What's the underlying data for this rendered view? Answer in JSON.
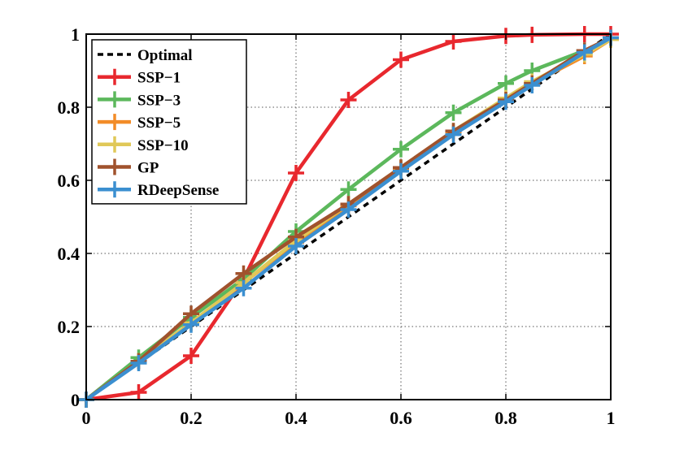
{
  "chart_data": {
    "type": "line",
    "title": "",
    "xlabel": "",
    "ylabel": "",
    "xlim": [
      0,
      1
    ],
    "ylim": [
      0,
      1
    ],
    "grid": true,
    "legend_position": "top-left",
    "x_ticks": [
      "0",
      "0.2",
      "0.4",
      "0.6",
      "0.8",
      "1"
    ],
    "y_ticks": [
      "0",
      "0.2",
      "0.4",
      "0.6",
      "0.8",
      "1"
    ],
    "x": [
      0,
      0.1,
      0.2,
      0.3,
      0.4,
      0.5,
      0.6,
      0.7,
      0.8,
      0.85,
      0.95,
      1.0
    ],
    "series": [
      {
        "name": "Optimal",
        "color": "#000000",
        "style": "dashed",
        "marker": "none",
        "values": [
          0,
          0.1,
          0.2,
          0.3,
          0.4,
          0.5,
          0.6,
          0.7,
          0.8,
          0.85,
          0.95,
          1.0
        ]
      },
      {
        "name": "SSP−1",
        "color": "#e8282e",
        "style": "solid",
        "marker": "plus",
        "values": [
          0,
          0.02,
          0.12,
          0.33,
          0.62,
          0.82,
          0.93,
          0.98,
          0.995,
          0.998,
          1.0,
          1.0
        ]
      },
      {
        "name": "SSP−3",
        "color": "#5cb85c",
        "style": "solid",
        "marker": "plus",
        "values": [
          0,
          0.115,
          0.225,
          0.33,
          0.46,
          0.575,
          0.685,
          0.785,
          0.865,
          0.9,
          0.955,
          0.985
        ]
      },
      {
        "name": "SSP−5",
        "color": "#f28c28",
        "style": "solid",
        "marker": "plus",
        "values": [
          0,
          0.105,
          0.21,
          0.32,
          0.43,
          0.53,
          0.63,
          0.73,
          0.82,
          0.865,
          0.94,
          0.985
        ]
      },
      {
        "name": "SSP−10",
        "color": "#e0c858",
        "style": "solid",
        "marker": "plus",
        "values": [
          0,
          0.105,
          0.21,
          0.32,
          0.435,
          0.535,
          0.635,
          0.735,
          0.825,
          0.87,
          0.945,
          0.985
        ]
      },
      {
        "name": "GP",
        "color": "#a0522d",
        "style": "solid",
        "marker": "plus",
        "values": [
          0,
          0.105,
          0.235,
          0.345,
          0.445,
          0.535,
          0.635,
          0.735,
          0.82,
          0.865,
          0.955,
          0.99
        ]
      },
      {
        "name": "RDeepSense",
        "color": "#3b8fd0",
        "style": "solid",
        "marker": "plus",
        "values": [
          0,
          0.1,
          0.205,
          0.305,
          0.42,
          0.52,
          0.625,
          0.725,
          0.815,
          0.86,
          0.95,
          0.99
        ]
      }
    ]
  }
}
